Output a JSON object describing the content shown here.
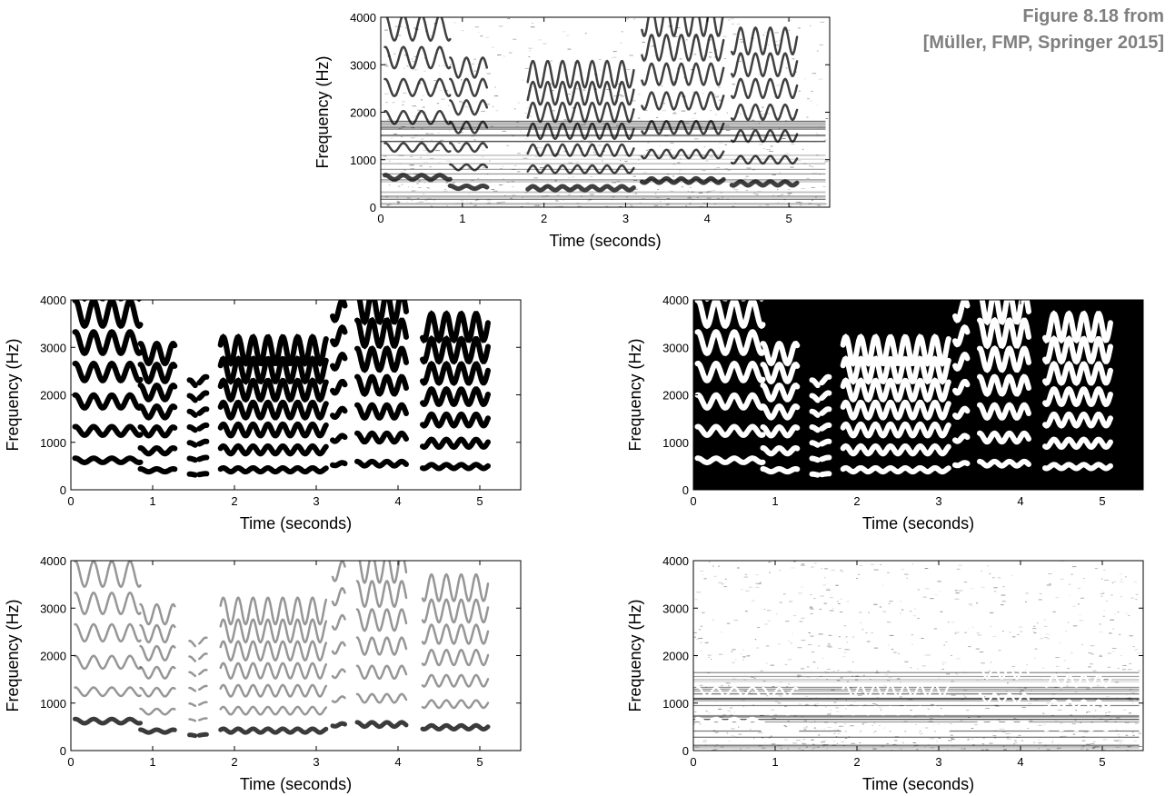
{
  "caption": {
    "line1": "Figure 8.18 from",
    "line2": "[Müller, FMP, Springer 2015]"
  },
  "chart_data": [
    {
      "type": "heatmap",
      "panel": "top",
      "colormap": "gray-inverted (dark = high magnitude)",
      "background": "#ffffff",
      "xlabel": "Time (seconds)",
      "ylabel": "Frequency (Hz)",
      "xlim": [
        0,
        5.5
      ],
      "ylim": [
        0,
        4000
      ],
      "xticks": [
        0,
        1,
        2,
        3,
        4,
        5
      ],
      "yticks": [
        0,
        1000,
        2000,
        3000,
        4000
      ],
      "segments": [
        {
          "t0": 0.05,
          "t1": 0.85,
          "f0": 630,
          "vibrato_hz": 45,
          "rate": 4.5
        },
        {
          "t0": 0.85,
          "t1": 1.3,
          "f0": 420,
          "vibrato_hz": 30,
          "rate": 5
        },
        {
          "t0": 1.8,
          "t1": 3.1,
          "f0": 400,
          "vibrato_hz": 40,
          "rate": 5.5
        },
        {
          "t0": 3.2,
          "t1": 4.2,
          "f0": 560,
          "vibrato_hz": 45,
          "rate": 5.5
        },
        {
          "t0": 4.3,
          "t1": 5.1,
          "f0": 500,
          "vibrato_hz": 40,
          "rate": 5.5
        }
      ]
    },
    {
      "type": "heatmap",
      "panel": "middle-left",
      "colormap": "binary mask (black = 1)",
      "background": "#ffffff",
      "xlabel": "Time (seconds)",
      "ylabel": "Frequency (Hz)",
      "xlim": [
        0,
        5.5
      ],
      "ylim": [
        0,
        4000
      ],
      "xticks": [
        0,
        1,
        2,
        3,
        4,
        5
      ],
      "yticks": [
        0,
        1000,
        2000,
        3000,
        4000
      ],
      "segments": [
        {
          "t0": 0.05,
          "t1": 0.85,
          "f0": 620,
          "vibrato_hz": 45,
          "rate": 4.5
        },
        {
          "t0": 0.85,
          "t1": 1.27,
          "f0": 410,
          "vibrato_hz": 30,
          "rate": 5
        },
        {
          "t0": 1.45,
          "t1": 1.52,
          "f0": 320,
          "vibrato_hz": 10,
          "rate": 5
        },
        {
          "t0": 1.57,
          "t1": 1.66,
          "f0": 330,
          "vibrato_hz": 10,
          "rate": 5
        },
        {
          "t0": 1.83,
          "t1": 3.12,
          "f0": 420,
          "vibrato_hz": 40,
          "rate": 5.5
        },
        {
          "t0": 3.2,
          "t1": 3.35,
          "f0": 540,
          "vibrato_hz": 30,
          "rate": 5.5
        },
        {
          "t0": 3.5,
          "t1": 4.1,
          "f0": 550,
          "vibrato_hz": 45,
          "rate": 5.5
        },
        {
          "t0": 4.3,
          "t1": 5.1,
          "f0": 490,
          "vibrato_hz": 40,
          "rate": 5.5
        }
      ]
    },
    {
      "type": "heatmap",
      "panel": "middle-right",
      "colormap": "binary mask inverted (white = 1)",
      "background": "#000000",
      "xlabel": "Time (seconds)",
      "ylabel": "Frequency (Hz)",
      "xlim": [
        0,
        5.5
      ],
      "ylim": [
        0,
        4000
      ],
      "xticks": [
        0,
        1,
        2,
        3,
        4,
        5
      ],
      "yticks": [
        0,
        1000,
        2000,
        3000,
        4000
      ],
      "segments": [
        {
          "t0": 0.05,
          "t1": 0.85,
          "f0": 620,
          "vibrato_hz": 45,
          "rate": 4.5
        },
        {
          "t0": 0.85,
          "t1": 1.27,
          "f0": 410,
          "vibrato_hz": 30,
          "rate": 5
        },
        {
          "t0": 1.45,
          "t1": 1.52,
          "f0": 320,
          "vibrato_hz": 10,
          "rate": 5
        },
        {
          "t0": 1.57,
          "t1": 1.66,
          "f0": 330,
          "vibrato_hz": 10,
          "rate": 5
        },
        {
          "t0": 1.83,
          "t1": 3.12,
          "f0": 420,
          "vibrato_hz": 40,
          "rate": 5.5
        },
        {
          "t0": 3.2,
          "t1": 3.35,
          "f0": 540,
          "vibrato_hz": 30,
          "rate": 5.5
        },
        {
          "t0": 3.5,
          "t1": 4.1,
          "f0": 550,
          "vibrato_hz": 45,
          "rate": 5.5
        },
        {
          "t0": 4.3,
          "t1": 5.1,
          "f0": 490,
          "vibrato_hz": 40,
          "rate": 5.5
        }
      ]
    },
    {
      "type": "heatmap",
      "panel": "bottom-left",
      "colormap": "gray-inverted (masked spectrogram)",
      "background": "#ffffff",
      "xlabel": "Time (seconds)",
      "ylabel": "Frequency (Hz)",
      "xlim": [
        0,
        5.5
      ],
      "ylim": [
        0,
        4000
      ],
      "xticks": [
        0,
        1,
        2,
        3,
        4,
        5
      ],
      "yticks": [
        0,
        1000,
        2000,
        3000,
        4000
      ],
      "segments": [
        {
          "t0": 0.05,
          "t1": 0.85,
          "f0": 620,
          "vibrato_hz": 45,
          "rate": 4.5
        },
        {
          "t0": 0.85,
          "t1": 1.27,
          "f0": 410,
          "vibrato_hz": 30,
          "rate": 5
        },
        {
          "t0": 1.45,
          "t1": 1.52,
          "f0": 320,
          "vibrato_hz": 10,
          "rate": 5
        },
        {
          "t0": 1.57,
          "t1": 1.66,
          "f0": 330,
          "vibrato_hz": 10,
          "rate": 5
        },
        {
          "t0": 1.83,
          "t1": 3.12,
          "f0": 420,
          "vibrato_hz": 40,
          "rate": 5.5
        },
        {
          "t0": 3.2,
          "t1": 3.35,
          "f0": 540,
          "vibrato_hz": 30,
          "rate": 5.5
        },
        {
          "t0": 3.5,
          "t1": 4.1,
          "f0": 550,
          "vibrato_hz": 45,
          "rate": 5.5
        },
        {
          "t0": 4.3,
          "t1": 5.1,
          "f0": 490,
          "vibrato_hz": 40,
          "rate": 5.5
        }
      ]
    },
    {
      "type": "heatmap",
      "panel": "bottom-right",
      "colormap": "gray-inverted (residual spectrogram, harmonic tracks removed)",
      "background": "#ffffff",
      "xlabel": "Time (seconds)",
      "ylabel": "Frequency (Hz)",
      "xlim": [
        0,
        5.5
      ],
      "ylim": [
        0,
        4000
      ],
      "xticks": [
        0,
        1,
        2,
        3,
        4,
        5
      ],
      "yticks": [
        0,
        1000,
        2000,
        3000,
        4000
      ],
      "segments": [
        {
          "t0": 0.05,
          "t1": 0.85,
          "f0": 620,
          "vibrato_hz": 45,
          "rate": 4.5
        },
        {
          "t0": 0.85,
          "t1": 1.27,
          "f0": 410,
          "vibrato_hz": 30,
          "rate": 5
        },
        {
          "t0": 1.83,
          "t1": 3.12,
          "f0": 420,
          "vibrato_hz": 40,
          "rate": 5.5
        },
        {
          "t0": 3.5,
          "t1": 4.1,
          "f0": 550,
          "vibrato_hz": 45,
          "rate": 5.5
        },
        {
          "t0": 4.3,
          "t1": 5.1,
          "f0": 490,
          "vibrato_hz": 40,
          "rate": 5.5
        }
      ]
    }
  ]
}
